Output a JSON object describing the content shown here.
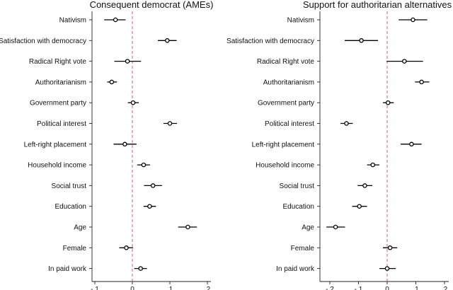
{
  "chart_data": [
    {
      "type": "scatter",
      "title": "Consequent democrat (AMEs)",
      "xlabel": "",
      "ylabel": "",
      "xlim": [
        -0.12,
        0.21
      ],
      "xticks": [
        "-.1",
        "0",
        ".1",
        ".2"
      ],
      "xtick_values": [
        -0.1,
        0,
        0.1,
        0.2
      ],
      "reference_line": 0,
      "categories": [
        "Nativism",
        "Satisfaction with democracy",
        "Radical Right vote",
        "Authoritarianism",
        "Government party",
        "Political interest",
        "Left-right placement",
        "Household income",
        "Social trust",
        "Education",
        "Age",
        "Female",
        "In paid work"
      ],
      "estimates": [
        -0.045,
        0.093,
        -0.013,
        -0.055,
        0.002,
        0.1,
        -0.02,
        0.03,
        0.055,
        0.046,
        0.148,
        -0.016,
        0.022
      ],
      "ci_low": [
        -0.075,
        0.068,
        -0.048,
        -0.067,
        -0.012,
        0.083,
        -0.05,
        0.013,
        0.031,
        0.03,
        0.122,
        -0.035,
        0.005
      ],
      "ci_high": [
        -0.018,
        0.118,
        0.023,
        -0.041,
        0.017,
        0.119,
        0.011,
        0.047,
        0.079,
        0.063,
        0.172,
        0.002,
        0.039
      ]
    },
    {
      "type": "scatter",
      "title": "Support for authoritarian alternatives",
      "xlabel": "",
      "ylabel": "",
      "xlim": [
        -0.235,
        0.215
      ],
      "xticks": [
        "-.2",
        "-.1",
        "0",
        ".1",
        ".2"
      ],
      "xtick_values": [
        -0.2,
        -0.1,
        0,
        0.1,
        0.2
      ],
      "reference_line": 0,
      "categories": [
        "Nativism",
        "Satisfaction with democracy",
        "Radical Right vote",
        "Authoritarianism",
        "Government party",
        "Political interest",
        "Left-right placement",
        "Household income",
        "Social trust",
        "Education",
        "Age",
        "Female",
        "In paid work"
      ],
      "estimates": [
        0.09,
        -0.09,
        0.06,
        0.12,
        0.003,
        -0.142,
        0.085,
        -0.05,
        -0.078,
        -0.097,
        -0.18,
        0.01,
        0.0
      ],
      "ci_low": [
        0.04,
        -0.148,
        -0.002,
        0.097,
        -0.015,
        -0.163,
        0.047,
        -0.07,
        -0.103,
        -0.122,
        -0.212,
        -0.015,
        -0.027
      ],
      "ci_high": [
        0.14,
        -0.032,
        0.125,
        0.147,
        0.023,
        -0.12,
        0.12,
        -0.027,
        -0.052,
        -0.07,
        -0.147,
        0.035,
        0.03
      ]
    }
  ]
}
